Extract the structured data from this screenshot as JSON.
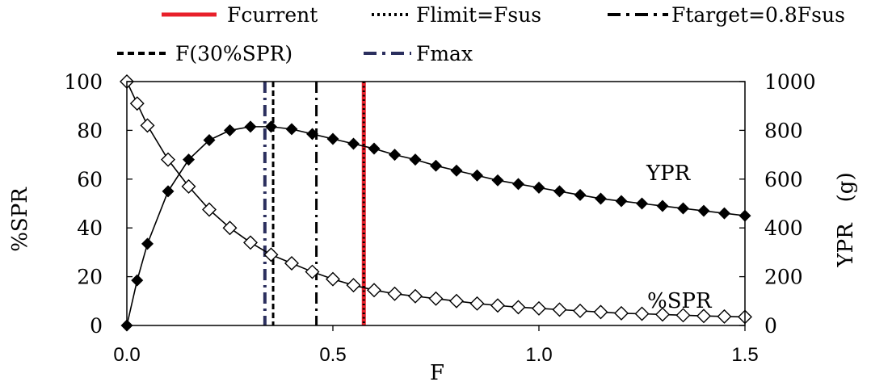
{
  "chart_data": {
    "type": "line",
    "title": "",
    "xlabel": "F",
    "ylabel_left": "%SPR",
    "ylabel_right": "YPR　(g)",
    "xlim": [
      0,
      1.5
    ],
    "ylim_left": [
      0,
      100
    ],
    "ylim_right": [
      0,
      1000
    ],
    "x_ticks": [
      "0.0",
      "0.5",
      "1.0",
      "1.5"
    ],
    "x_tick_values": [
      0,
      0.5,
      1.0,
      1.5
    ],
    "y_left_ticks": [
      "0",
      "20",
      "40",
      "60",
      "80",
      "100"
    ],
    "y_left_tick_values": [
      0,
      20,
      40,
      60,
      80,
      100
    ],
    "y_right_ticks": [
      "0",
      "200",
      "400",
      "600",
      "800",
      "1000"
    ],
    "y_right_tick_values": [
      0,
      200,
      400,
      600,
      800,
      1000
    ],
    "grid": false,
    "legend_position": "top",
    "series": [
      {
        "name": "YPR",
        "axis": "right",
        "marker": "filled-diamond",
        "color": "#000000",
        "x": [
          0.0,
          0.025,
          0.05,
          0.1,
          0.15,
          0.2,
          0.25,
          0.3,
          0.35,
          0.4,
          0.45,
          0.5,
          0.55,
          0.6,
          0.65,
          0.7,
          0.75,
          0.8,
          0.85,
          0.9,
          0.95,
          1.0,
          1.05,
          1.1,
          1.15,
          1.2,
          1.25,
          1.3,
          1.35,
          1.4,
          1.45,
          1.5
        ],
        "values": [
          0,
          185,
          335,
          550,
          680,
          760,
          800,
          815,
          815,
          805,
          785,
          765,
          745,
          725,
          700,
          680,
          655,
          635,
          615,
          595,
          580,
          565,
          550,
          535,
          520,
          510,
          500,
          490,
          480,
          470,
          460,
          450
        ]
      },
      {
        "name": "%SPR",
        "axis": "left",
        "marker": "open-diamond",
        "color": "#000000",
        "x": [
          0.0,
          0.025,
          0.05,
          0.1,
          0.15,
          0.2,
          0.25,
          0.3,
          0.35,
          0.4,
          0.45,
          0.5,
          0.55,
          0.6,
          0.65,
          0.7,
          0.75,
          0.8,
          0.85,
          0.9,
          0.95,
          1.0,
          1.05,
          1.1,
          1.15,
          1.2,
          1.25,
          1.3,
          1.35,
          1.4,
          1.45,
          1.5
        ],
        "values": [
          100,
          91,
          82,
          68,
          57,
          47.5,
          40,
          34,
          29,
          25.5,
          22,
          19,
          16.5,
          14.5,
          13,
          12,
          11,
          10,
          9,
          8.2,
          7.5,
          7,
          6.5,
          6,
          5.5,
          5,
          4.8,
          4.5,
          4.2,
          3.9,
          3.7,
          3.5
        ]
      }
    ],
    "series_labels": {
      "ypr": "YPR",
      "spr": "%SPR"
    },
    "reference_lines": [
      {
        "name": "Fcurrent",
        "x": 0.575,
        "style": "solid",
        "color": "#e8202a"
      },
      {
        "name": "Flimit=Fsus",
        "x": 0.575,
        "style": "dotted",
        "color": "#000000"
      },
      {
        "name": "Ftarget=0.8Fsus",
        "x": 0.46,
        "style": "dash-dot",
        "color": "#000000"
      },
      {
        "name": "F(30%SPR)",
        "x": 0.355,
        "style": "dashed",
        "color": "#000000"
      },
      {
        "name": "Fmax",
        "x": 0.335,
        "style": "dash-dot",
        "color": "#2b2f5e"
      }
    ]
  },
  "legend": {
    "items": [
      {
        "label": "Fcurrent",
        "style": "solid",
        "color": "#e8202a"
      },
      {
        "label": "Flimit=Fsus",
        "style": "dotted",
        "color": "#000000"
      },
      {
        "label": "Ftarget=0.8Fsus",
        "style": "dash-dot",
        "color": "#000000"
      },
      {
        "label": "F(30%SPR)",
        "style": "dashed",
        "color": "#000000"
      },
      {
        "label": "Fmax",
        "style": "dash-dot",
        "color": "#2b2f5e"
      }
    ]
  }
}
